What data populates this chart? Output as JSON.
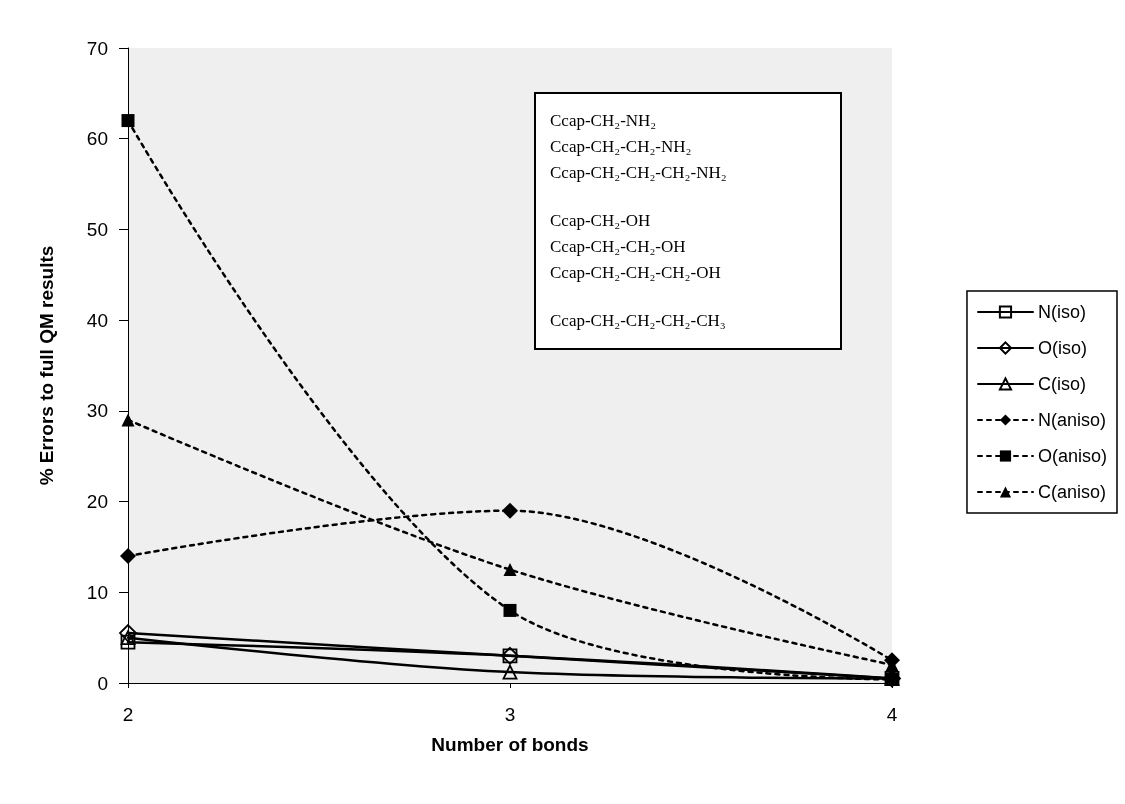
{
  "chart_data": {
    "type": "line",
    "xlabel": "Number of bonds",
    "ylabel": "% Errors to full QM results",
    "x": [
      2,
      3,
      4
    ],
    "xlim": [
      2,
      4
    ],
    "xticks": [
      2,
      3,
      4
    ],
    "ylim": [
      0,
      70
    ],
    "yticks": [
      0,
      10,
      20,
      30,
      40,
      50,
      60,
      70
    ],
    "grid": false,
    "legend": "right",
    "series": [
      {
        "name": "N(iso)",
        "color": "#000000",
        "marker": "square",
        "line_style": "solid",
        "values": [
          4.5,
          3,
          0.5
        ]
      },
      {
        "name": "O(iso)",
        "color": "#000000",
        "marker": "diamond",
        "line_style": "solid",
        "values": [
          5.5,
          3,
          0.5
        ]
      },
      {
        "name": "C(iso)",
        "color": "#000000",
        "marker": "triangle",
        "line_style": "solid",
        "values": [
          5,
          1.2,
          0.5
        ]
      },
      {
        "name": "N(aniso)",
        "color": "#000000",
        "marker": "diamond",
        "line_style": "dotted",
        "values": [
          14,
          19,
          2.5
        ]
      },
      {
        "name": "O(aniso)",
        "color": "#000000",
        "marker": "square",
        "line_style": "dotted",
        "values": [
          62,
          8,
          0.4
        ]
      },
      {
        "name": "C(aniso)",
        "color": "#000000",
        "marker": "triangle",
        "line_style": "dotted",
        "values": [
          29,
          12.5,
          2
        ]
      }
    ],
    "annotations": [
      "Ccap-CH₂-NH₂",
      "Ccap-CH₂-CH₂-NH₂",
      "Ccap-CH₂-CH₂-CH₂-NH₂",
      "Ccap-CH₂-OH",
      "Ccap-CH₂-CH₂-OH",
      "Ccap-CH₂-CH₂-CH₂-OH",
      "Ccap-CH₂-CH₂-CH₂-CH₃"
    ]
  }
}
